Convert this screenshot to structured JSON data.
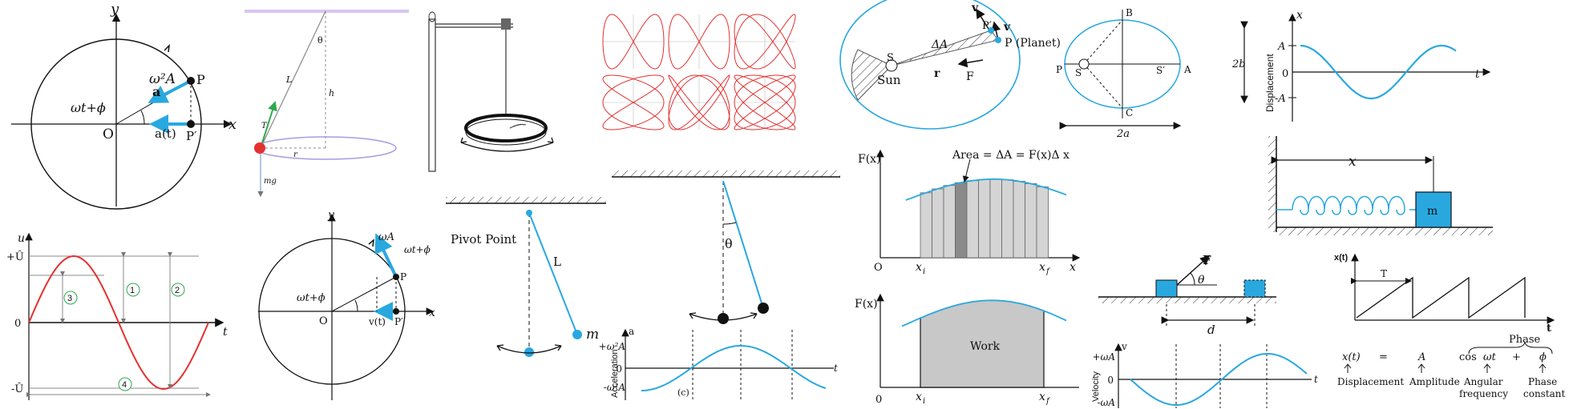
{
  "colors": {
    "accent": "#29a8e0",
    "red": "#e53030",
    "gray_fill": "#c8c8c8",
    "green": "#2fa84f",
    "lilac": "#a79ce0"
  },
  "panel_ref_circle": {
    "y": "y",
    "x": "x",
    "w2A": "ω²A",
    "a_vec": "a",
    "P": "P",
    "Pp": "P′",
    "O": "O",
    "angle": "ωt+ϕ",
    "at": "a(t)"
  },
  "panel_conical": {
    "theta": "θ",
    "L": "L",
    "h": "h",
    "T": "T",
    "r": "r",
    "mg": "mg"
  },
  "panel_u": {
    "u": "u",
    "Umax": "+Û",
    "zero": "0",
    "Umin": "-Û",
    "t": "t",
    "n1": "1",
    "n2": "2",
    "n3": "3",
    "n4": "4"
  },
  "panel_vel_circle": {
    "y": "y",
    "x": "x",
    "wA": "ωA",
    "angle1": "ωt+ϕ",
    "angle2": "ωt+ϕ",
    "P": "P",
    "Pp": "P′",
    "O": "O",
    "vt": "v(t)"
  },
  "panel_pendulum": {
    "pivot": "Pivot Point",
    "L": "L",
    "m": "m"
  },
  "panel_pend2": {
    "theta": "θ"
  },
  "panel_accel": {
    "a": "a",
    "ylabel": "Acceleration",
    "pos": "+ω²A",
    "zero": "0",
    "neg": "-ω²A",
    "t": "t",
    "caption": "(c)"
  },
  "panel_kepler": {
    "v1": "v",
    "v2": "v",
    "Pp": "P′",
    "P": "P (Planet)",
    "dA": "ΔA",
    "S": "S",
    "sun": "Sun",
    "r": "r",
    "F": "F"
  },
  "panel_ellipse": {
    "B": "B",
    "C": "C",
    "P": "P",
    "S": "S",
    "Sp": "S′",
    "A": "A",
    "b2": "2b",
    "a2": "2a"
  },
  "panel_disp": {
    "x": "x",
    "ylabel": "Displacement",
    "A": "A",
    "zero": "0",
    "negA": "-A",
    "t": "t"
  },
  "panel_work1": {
    "F": "F(x)",
    "area": "Area = ΔA = F(x)Δ x",
    "O": "O",
    "xi": "x",
    "xi_sub": "i",
    "xf": "x",
    "xf_sub": "f",
    "x": "x"
  },
  "panel_work2": {
    "F": "F(x)",
    "work": "Work",
    "zero": "0",
    "xi": "x",
    "xi_sub": "i",
    "xf": "x",
    "xf_sub": "f"
  },
  "panel_spring": {
    "x": "x",
    "m": "m"
  },
  "panel_block": {
    "F": "F",
    "theta": "θ",
    "d": "d"
  },
  "panel_saw": {
    "y": "x(t)",
    "T": "T",
    "t": "t"
  },
  "panel_velocity": {
    "v": "v",
    "ylabel": "Velocity",
    "pos": "+ωA",
    "zero": "0",
    "neg": "-ωA",
    "t": "t"
  },
  "panel_eq": {
    "phase": "Phase",
    "lhs": "x(t)",
    "eq": "=",
    "A": "A",
    "cos": "cos",
    "wt": "ωt",
    "plus": "+",
    "phi": "ϕ",
    "disp": "Displacement",
    "amp": "Amplitude",
    "ang1": "Angular",
    "ang2": "frequency",
    "pc1": "Phase",
    "pc2": "constant"
  }
}
